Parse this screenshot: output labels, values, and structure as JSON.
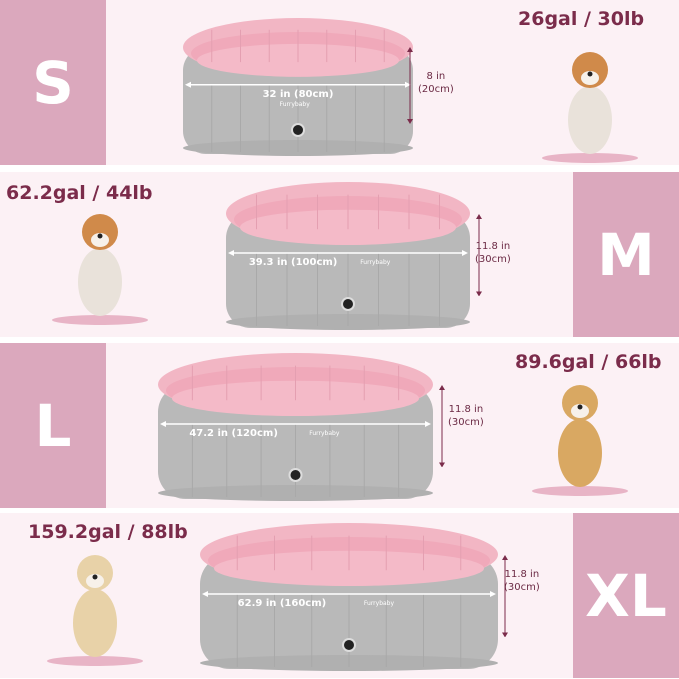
{
  "colors": {
    "tile": "#dba8bd",
    "background": "#fcf1f5",
    "caption": "#7b2c4b",
    "pool_outer": "#b8b8b8",
    "pool_inner": "#f3b8c6"
  },
  "brand": "Furrybaby",
  "sizes": [
    {
      "size": "S",
      "capacity": "26gal / 30lb",
      "width": "32 in (80cm)",
      "height_in": "8 in",
      "height_cm": "(20cm)",
      "dog": "corgi"
    },
    {
      "size": "M",
      "capacity": "62.2gal / 44lb",
      "width": "39.3 in (100cm)",
      "height_in": "11.8 in",
      "height_cm": "(30cm)",
      "dog": "shiba-inu"
    },
    {
      "size": "L",
      "capacity": "89.6gal / 66lb",
      "width": "47.2 in (120cm)",
      "height_in": "11.8 in",
      "height_cm": "(30cm)",
      "dog": "golden-retriever"
    },
    {
      "size": "XL",
      "capacity": "159.2gal / 88lb",
      "width": "62.9 in (160cm)",
      "height_in": "11.8 in",
      "height_cm": "(30cm)",
      "dog": "labrador"
    }
  ]
}
